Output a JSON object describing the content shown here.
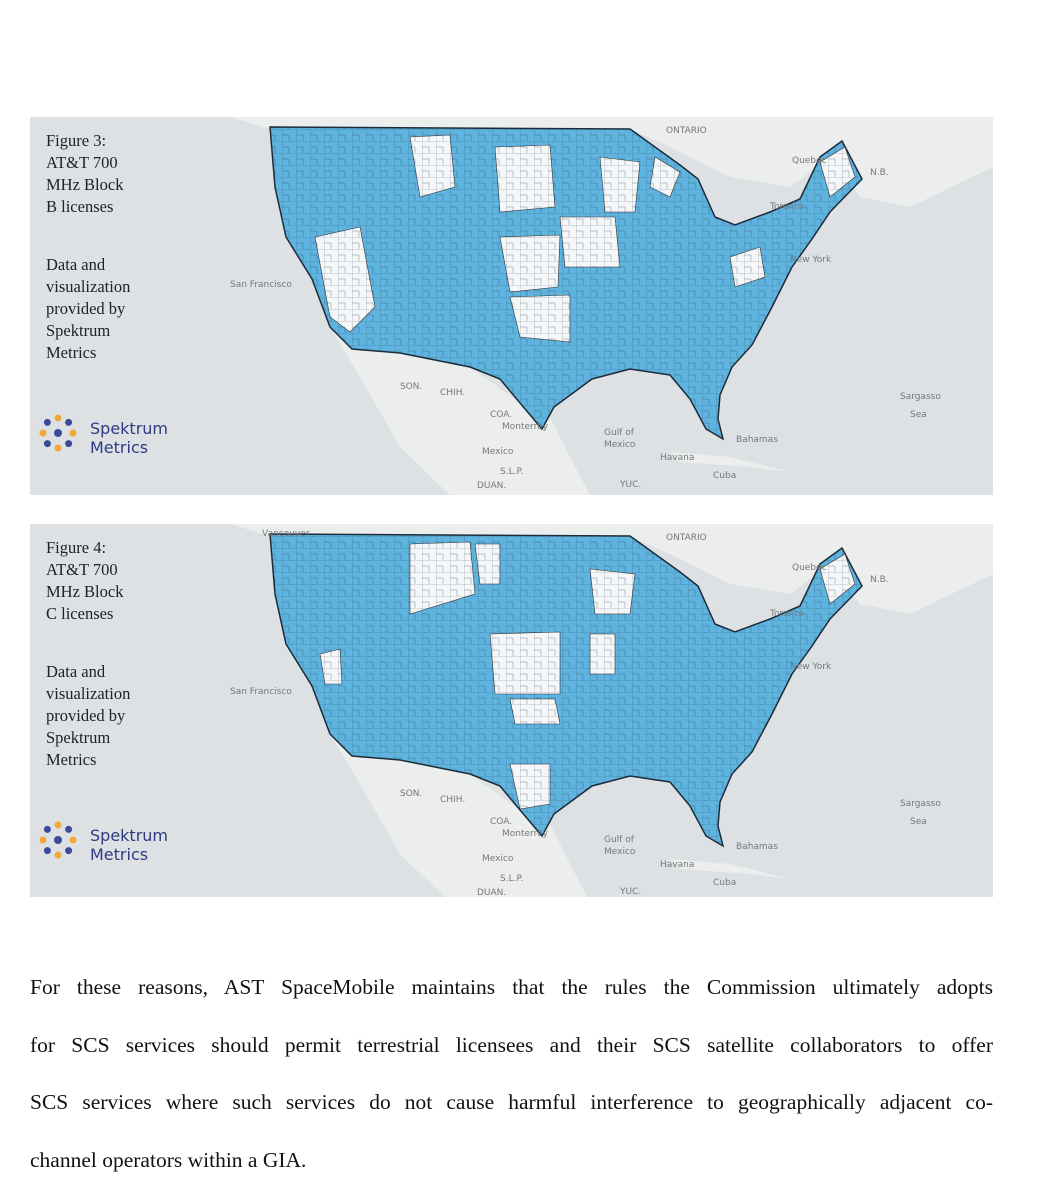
{
  "figures": [
    {
      "caption": [
        "Figure 3:",
        "AT&T 700",
        "MHz Block",
        "B licenses"
      ],
      "credit": [
        "Data and",
        "visualization",
        "provided by",
        "Spektrum",
        "Metrics"
      ],
      "logo": [
        "Spektrum",
        "Metrics"
      ],
      "map_labels": [
        "Sargasso",
        "Sea",
        "Mexico",
        "Gulf of",
        "Mexico",
        "Cuba",
        "Bahamas",
        "Havana",
        "San Francisco",
        "New York",
        "ONTARIO",
        "Quebec",
        "SON.",
        "CHIH.",
        "COA.",
        "Monterrey",
        "S.L.P.",
        "DUAN.",
        "YUC.",
        "Toronto",
        "N.B."
      ]
    },
    {
      "caption": [
        "Figure 4:",
        "AT&T 700",
        "MHz Block",
        "C licenses"
      ],
      "credit": [
        "Data and",
        "visualization",
        "provided by",
        "Spektrum",
        "Metrics"
      ],
      "logo": [
        "Spektrum",
        "Metrics"
      ],
      "map_labels": [
        "Sargasso",
        "Sea",
        "Mexico",
        "Gulf of",
        "Mexico",
        "Cuba",
        "Bahamas",
        "Havana",
        "San Francisco",
        "New York",
        "ONTARIO",
        "Quebec",
        "SON.",
        "CHIH.",
        "COA.",
        "Monterrey",
        "S.L.P.",
        "DUAN.",
        "YUC.",
        "Toronto",
        "N.B.",
        "Vancouver"
      ]
    }
  ],
  "paragraph": [
    "For these reasons, AST SpaceMobile maintains that the rules the Commission ultimately adopts",
    "for SCS services should permit terrestrial licensees and their SCS satellite collaborators to offer",
    "SCS services where such services do not cause harmful interference to geographically adjacent co-",
    "channel operators within a GIA."
  ]
}
